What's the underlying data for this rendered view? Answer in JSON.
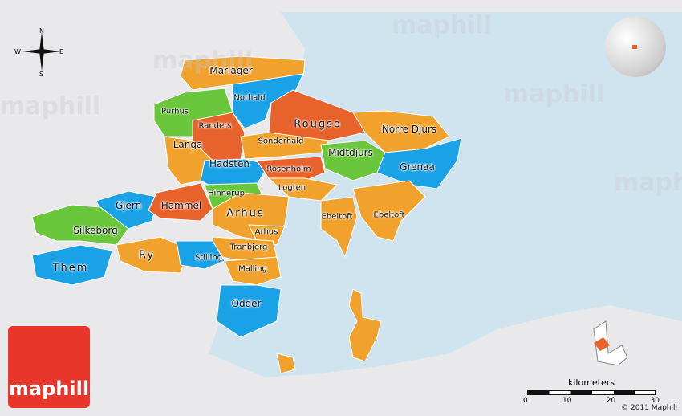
{
  "regions": [
    {
      "name": "Mariager",
      "color": "#f1a22c",
      "style": "md"
    },
    {
      "name": "Norhald",
      "color": "#1aa2e6",
      "style": ""
    },
    {
      "name": "Purhus",
      "color": "#6ac63a",
      "style": ""
    },
    {
      "name": "Randers",
      "color": "#e8622b",
      "style": ""
    },
    {
      "name": "Rougso",
      "color": "#e8622b",
      "style": "big"
    },
    {
      "name": "Norre Djurs",
      "color": "#f1a22c",
      "style": "md"
    },
    {
      "name": "Langa",
      "color": "#f1a22c",
      "style": "md"
    },
    {
      "name": "Sonderhald",
      "color": "#f1a22c",
      "style": ""
    },
    {
      "name": "Midtdjurs",
      "color": "#6ac63a",
      "style": "md"
    },
    {
      "name": "Hadsten",
      "color": "#1aa2e6",
      "style": "md"
    },
    {
      "name": "Rosenholm",
      "color": "#e8622b",
      "style": ""
    },
    {
      "name": "Grenaa",
      "color": "#1aa2e6",
      "style": "md"
    },
    {
      "name": "Logten",
      "color": "#f1a22c",
      "style": ""
    },
    {
      "name": "Hinnerup",
      "color": "#6ac63a",
      "style": ""
    },
    {
      "name": "Gjern",
      "color": "#1aa2e6",
      "style": "md"
    },
    {
      "name": "Hammel",
      "color": "#e8622b",
      "style": "md"
    },
    {
      "name": "Arhus",
      "color": "#f1a22c",
      "style": "big"
    },
    {
      "name": "Ebeltoft",
      "color": "#f1a22c",
      "style": ""
    },
    {
      "name": "Ebeltoft",
      "color": "#f1a22c",
      "style": ""
    },
    {
      "name": "Silkeborg",
      "color": "#6ac63a",
      "style": "md"
    },
    {
      "name": "Arhus",
      "color": "#f1a22c",
      "style": ""
    },
    {
      "name": "Tranbjerg",
      "color": "#f1a22c",
      "style": ""
    },
    {
      "name": "Ry",
      "color": "#f1a22c",
      "style": "big"
    },
    {
      "name": "Stilling",
      "color": "#1aa2e6",
      "style": ""
    },
    {
      "name": "Them",
      "color": "#1aa2e6",
      "style": "big"
    },
    {
      "name": "Malling",
      "color": "#f1a22c",
      "style": ""
    },
    {
      "name": "Odder",
      "color": "#1aa2e6",
      "style": "md"
    }
  ],
  "compass": {
    "n": "N",
    "s": "S",
    "e": "E",
    "w": "W"
  },
  "logo": "maphill",
  "watermark": "maphill",
  "scale": {
    "title": "kilometers",
    "ticks": [
      "0",
      "10",
      "20",
      "30"
    ]
  },
  "copyright": "© 2011 Maphill",
  "colors": {
    "sea": "#cfe4ef",
    "land": "#e9e8ea",
    "brand": "#e8372a"
  }
}
